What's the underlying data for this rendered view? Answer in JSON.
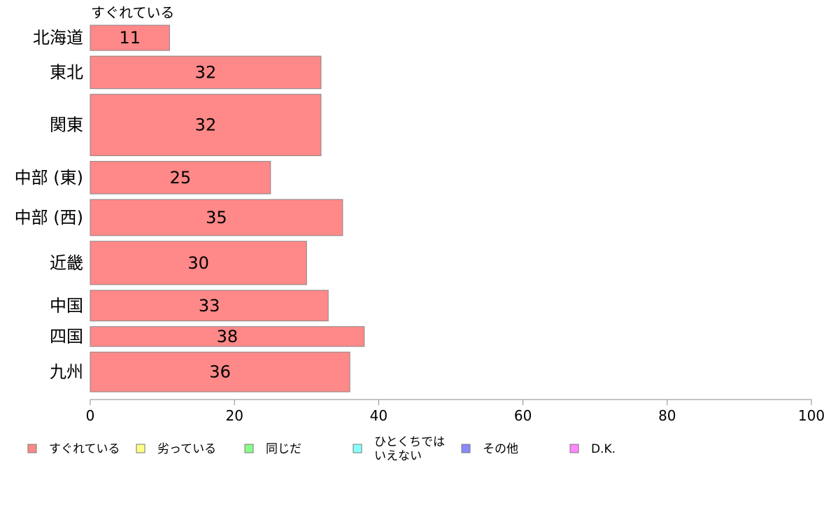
{
  "chart_data": {
    "type": "bar",
    "orientation": "horizontal",
    "series_title": "すぐれている",
    "categories": [
      "北海道",
      "東北",
      "関東",
      "中部 (東)",
      "中部 (西)",
      "近畿",
      "中国",
      "四国",
      "九州"
    ],
    "values": [
      11,
      32,
      32,
      25,
      35,
      30,
      33,
      38,
      36
    ],
    "value_labels": [
      "11",
      "32",
      "32",
      "25",
      "35",
      "30",
      "33",
      "38",
      "36"
    ],
    "relative_bar_thickness": [
      0.7,
      0.9,
      1.7,
      0.9,
      1.0,
      1.2,
      0.85,
      0.55,
      1.1
    ],
    "xlim": [
      0,
      100
    ],
    "xticks": [
      "0",
      "20",
      "40",
      "60",
      "80",
      "100"
    ],
    "grid": false,
    "legend_position": "bottom",
    "legend": [
      {
        "label": "すぐれている",
        "color": "#ff8888"
      },
      {
        "label": "劣っている",
        "color": "#ffff88"
      },
      {
        "label": "同じだ",
        "color": "#88ff88"
      },
      {
        "label": "ひとくちでは\nいえない",
        "color": "#88ffff"
      },
      {
        "label": "その他",
        "color": "#8888ff"
      },
      {
        "label": "D.K.",
        "color": "#ff88ff"
      }
    ],
    "bar_color": "#ff8888",
    "bar_stroke": "#888888"
  }
}
